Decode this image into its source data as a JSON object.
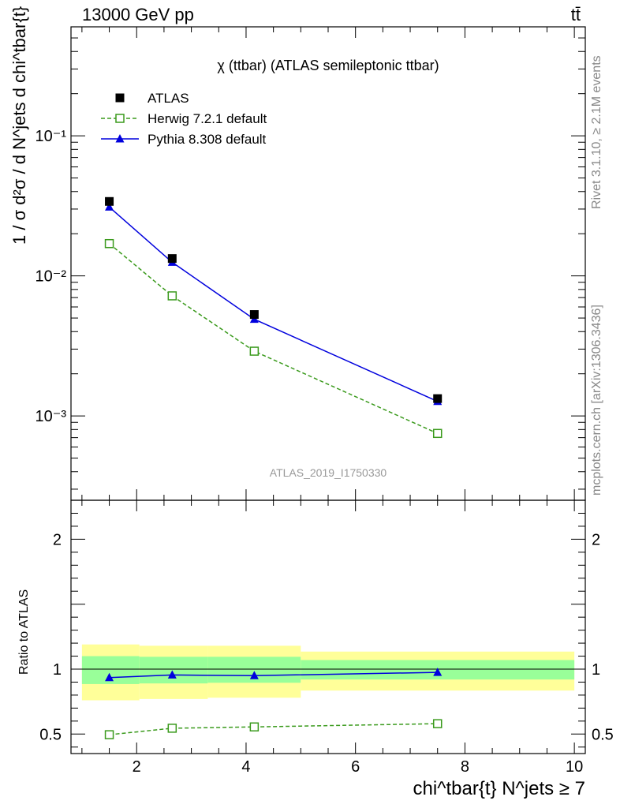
{
  "header": {
    "left": "13000 GeV pp",
    "right": "tt̄"
  },
  "side_text": {
    "rivet": "Rivet 3.1.10, ≥ 2.1M events",
    "mcplots": "mcplots.cern.ch [arXiv:1306.3436]"
  },
  "chart_data": [
    {
      "type": "line",
      "title": "χ (ttbar) (ATLAS semileptonic ttbar)",
      "watermark": "ATLAS_2019_I1750330",
      "ylabel": "1 / σ d²σ / d N^jets d chi^tbar{t}",
      "yscale": "log",
      "ylim": [
        0.00025,
        0.6
      ],
      "xlim": [
        0.8,
        10.2
      ],
      "y_ticks": [
        {
          "value": 0.001,
          "label": "10⁻³"
        },
        {
          "value": 0.01,
          "label": "10⁻²"
        },
        {
          "value": 0.1,
          "label": "10⁻¹"
        }
      ],
      "legend_position": "top-left",
      "series": [
        {
          "name": "ATLAS",
          "color": "#000000",
          "marker": "filled-square",
          "line": "none",
          "x": [
            1.5,
            2.65,
            4.15,
            7.5
          ],
          "y": [
            0.034,
            0.0133,
            0.0053,
            0.00133
          ]
        },
        {
          "name": "Herwig 7.2.1 default",
          "color": "#3a9a1c",
          "marker": "open-square",
          "line": "dashed",
          "x": [
            1.5,
            2.65,
            4.15,
            7.5
          ],
          "y": [
            0.017,
            0.0072,
            0.0029,
            0.00075
          ]
        },
        {
          "name": "Pythia 8.308 default",
          "color": "#0000dd",
          "marker": "filled-triangle",
          "line": "solid",
          "x": [
            1.5,
            2.65,
            4.15,
            7.5
          ],
          "y": [
            0.031,
            0.0125,
            0.0049,
            0.00127
          ]
        }
      ]
    },
    {
      "type": "line",
      "ylabel": "Ratio to ATLAS",
      "xlabel": "chi^tbar{t} N^jets ≥ 7",
      "xlim": [
        0.8,
        10.2
      ],
      "ylim": [
        0.35,
        2.3
      ],
      "x_ticks": [
        2,
        4,
        6,
        8,
        10
      ],
      "y_ticks": [
        0.5,
        1,
        2
      ],
      "reference_line": 1,
      "uncertainty_bands": [
        {
          "x_low": 1.0,
          "x_high": 2.05,
          "inner": [
            0.885,
            1.1
          ],
          "outer": [
            0.76,
            1.19
          ]
        },
        {
          "x_low": 2.05,
          "x_high": 3.3,
          "inner": [
            0.89,
            1.095
          ],
          "outer": [
            0.77,
            1.18
          ]
        },
        {
          "x_low": 3.3,
          "x_high": 5.0,
          "inner": [
            0.895,
            1.095
          ],
          "outer": [
            0.78,
            1.18
          ]
        },
        {
          "x_low": 5.0,
          "x_high": 10.0,
          "inner": [
            0.92,
            1.07
          ],
          "outer": [
            0.835,
            1.135
          ]
        }
      ],
      "band_colors": {
        "inner": "#99ff99",
        "outer": "#ffff99"
      },
      "series": [
        {
          "name": "Herwig 7.2.1 default",
          "color": "#3a9a1c",
          "marker": "open-square",
          "line": "dashed",
          "x": [
            1.5,
            2.65,
            4.15,
            7.5
          ],
          "y": [
            0.495,
            0.545,
            0.555,
            0.58
          ]
        },
        {
          "name": "Pythia 8.308 default",
          "color": "#0000dd",
          "marker": "filled-triangle",
          "line": "solid",
          "x": [
            1.5,
            2.65,
            4.15,
            7.5
          ],
          "y": [
            0.935,
            0.955,
            0.95,
            0.975
          ]
        }
      ]
    }
  ]
}
